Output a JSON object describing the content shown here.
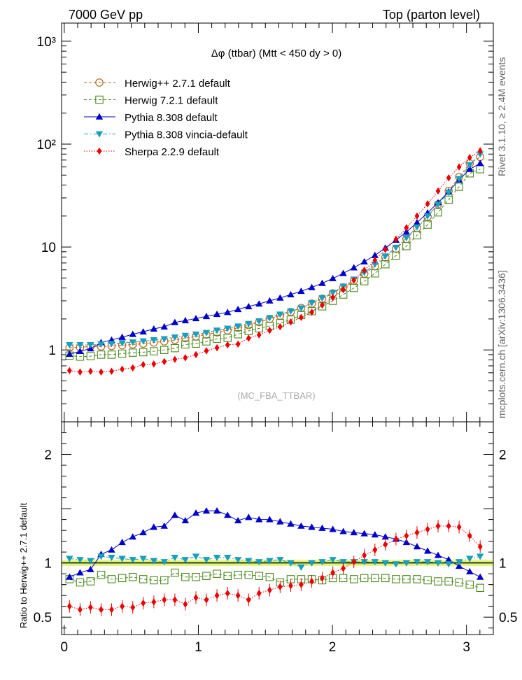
{
  "header": {
    "left": "7000 GeV pp",
    "right": "Top (parton level)"
  },
  "side_labels": {
    "rivet": "Rivet 3.1.10, ≥ 2.4M events",
    "mcplots": "mcplots.cern.ch [arXiv:1306.3436]"
  },
  "chart_data": [
    {
      "type": "scatter",
      "panel": "main",
      "title": "Δφ (ttbar) (Mtt < 450 dy > 0)",
      "watermark": "(MC_FBA_TTBAR)",
      "xlim": [
        -0.02,
        3.2
      ],
      "ylim": [
        0.2,
        1500
      ],
      "yscale": "log",
      "y_ticks": [
        {
          "value": 1,
          "label": "1"
        },
        {
          "value": 10,
          "label": "10"
        },
        {
          "value": 100,
          "label": "10²"
        },
        {
          "value": 1000,
          "label": "10³"
        }
      ],
      "legend_position": "top-left",
      "x": [
        0.039,
        0.118,
        0.196,
        0.275,
        0.353,
        0.432,
        0.511,
        0.589,
        0.668,
        0.746,
        0.825,
        0.903,
        0.982,
        1.06,
        1.139,
        1.218,
        1.296,
        1.375,
        1.453,
        1.532,
        1.61,
        1.689,
        1.767,
        1.846,
        1.924,
        2.003,
        2.081,
        2.16,
        2.238,
        2.317,
        2.395,
        2.474,
        2.552,
        2.631,
        2.71,
        2.788,
        2.867,
        2.945,
        3.024,
        3.102
      ],
      "series": [
        {
          "name": "Herwig++ 2.7.1 default",
          "color": "#b5651d",
          "marker": "circle-open",
          "line": "dashed",
          "values": [
            1.05,
            1.06,
            1.08,
            1.08,
            1.09,
            1.11,
            1.13,
            1.15,
            1.18,
            1.21,
            1.25,
            1.3,
            1.35,
            1.41,
            1.48,
            1.55,
            1.64,
            1.74,
            1.86,
            2.0,
            2.15,
            2.34,
            2.56,
            2.82,
            3.15,
            3.55,
            4.05,
            4.7,
            5.5,
            6.5,
            7.9,
            9.6,
            12.0,
            15.3,
            19.7,
            26.0,
            35.0,
            48.0,
            65.0,
            75.0
          ]
        },
        {
          "name": "Herwig 7.2.1 default",
          "color": "#4a8a1e",
          "marker": "square-open",
          "line": "dashed",
          "values": [
            0.88,
            0.86,
            0.87,
            0.9,
            0.9,
            0.92,
            0.94,
            0.95,
            0.97,
            1.0,
            1.04,
            1.13,
            1.15,
            1.21,
            1.28,
            1.31,
            1.42,
            1.53,
            1.62,
            1.71,
            1.82,
            1.97,
            2.18,
            2.38,
            2.65,
            3.0,
            3.45,
            4.0,
            4.65,
            5.55,
            6.8,
            8.25,
            10.2,
            13.0,
            16.5,
            21.7,
            28.8,
            38.5,
            52.0,
            57.0
          ]
        },
        {
          "name": "Pythia 8.308 default",
          "color": "#0000cc",
          "marker": "triangle-up",
          "line": "solid",
          "values": [
            0.91,
            0.97,
            1.03,
            1.18,
            1.25,
            1.33,
            1.42,
            1.5,
            1.6,
            1.68,
            1.85,
            1.93,
            2.02,
            2.12,
            2.22,
            2.32,
            2.48,
            2.64,
            2.8,
            3.0,
            3.2,
            3.45,
            3.72,
            4.05,
            4.45,
            4.95,
            5.55,
            6.3,
            7.2,
            8.3,
            9.8,
            11.7,
            14.0,
            17.3,
            21.5,
            27.0,
            34.5,
            45.0,
            57.0,
            65.0
          ]
        },
        {
          "name": "Pythia 8.308 vincia-default",
          "color": "#1a9fbe",
          "marker": "triangle-down",
          "line": "dashdot",
          "values": [
            1.12,
            1.12,
            1.12,
            1.14,
            1.15,
            1.17,
            1.19,
            1.22,
            1.25,
            1.28,
            1.33,
            1.38,
            1.42,
            1.47,
            1.55,
            1.62,
            1.7,
            1.8,
            1.91,
            2.05,
            2.22,
            2.38,
            2.55,
            2.86,
            3.2,
            3.6,
            4.15,
            4.85,
            5.65,
            6.8,
            8.15,
            9.9,
            12.3,
            15.6,
            20.0,
            26.0,
            34.0,
            46.0,
            63.0,
            80.0
          ]
        },
        {
          "name": "Sherpa 2.2.9 default",
          "color": "#ee0000",
          "marker": "diamond",
          "line": "dotted",
          "values": [
            0.63,
            0.61,
            0.62,
            0.61,
            0.62,
            0.65,
            0.67,
            0.72,
            0.73,
            0.77,
            0.81,
            0.84,
            0.9,
            0.98,
            1.05,
            1.12,
            1.14,
            1.3,
            1.4,
            1.55,
            1.68,
            1.87,
            2.07,
            2.33,
            2.73,
            3.22,
            3.85,
            4.75,
            5.95,
            7.45,
            9.45,
            11.9,
            15.4,
            20.0,
            26.3,
            35.0,
            47.0,
            60.0,
            74.0,
            86.0
          ]
        }
      ]
    },
    {
      "type": "scatter",
      "panel": "ratio",
      "ylabel": "Ratio to Herwig++ 2.7.1 default",
      "xlim": [
        -0.02,
        3.2
      ],
      "ylim": [
        0.34,
        2.3
      ],
      "x_ticks": [
        {
          "value": 0,
          "label": "0"
        },
        {
          "value": 1,
          "label": "1"
        },
        {
          "value": 2,
          "label": "2"
        },
        {
          "value": 3,
          "label": "3"
        }
      ],
      "y_ticks": [
        {
          "value": 0.5,
          "label": "0.5"
        },
        {
          "value": 1,
          "label": "1"
        },
        {
          "value": 2,
          "label": "2"
        }
      ],
      "reference_band": [
        0.97,
        1.03
      ],
      "series": [
        {
          "name": "Herwig 7.2.1 default",
          "values": [
            0.85,
            0.82,
            0.83,
            0.89,
            0.85,
            0.86,
            0.87,
            0.85,
            0.84,
            0.84,
            0.91,
            0.87,
            0.87,
            0.88,
            0.9,
            0.88,
            0.89,
            0.89,
            0.88,
            0.87,
            0.82,
            0.85,
            0.85,
            0.85,
            0.84,
            0.86,
            0.86,
            0.85,
            0.86,
            0.86,
            0.86,
            0.85,
            0.85,
            0.85,
            0.84,
            0.83,
            0.83,
            0.82,
            0.8,
            0.77
          ]
        },
        {
          "name": "Pythia 8.308 default",
          "values": [
            0.87,
            0.91,
            0.94,
            1.08,
            1.12,
            1.19,
            1.24,
            1.28,
            1.33,
            1.34,
            1.44,
            1.39,
            1.46,
            1.48,
            1.48,
            1.44,
            1.39,
            1.42,
            1.4,
            1.4,
            1.38,
            1.36,
            1.34,
            1.33,
            1.32,
            1.31,
            1.29,
            1.28,
            1.27,
            1.26,
            1.24,
            1.22,
            1.19,
            1.15,
            1.11,
            1.07,
            1.03,
            0.97,
            0.92,
            0.87
          ]
        },
        {
          "name": "Pythia 8.308 vincia-default",
          "values": [
            1.04,
            1.03,
            1.02,
            1.06,
            1.05,
            1.04,
            1.03,
            1.04,
            1.02,
            1.01,
            1.05,
            1.03,
            1.06,
            1.03,
            1.05,
            1.05,
            1.03,
            1.02,
            1.01,
            1.02,
            1.03,
            1.0,
            0.96,
            1.0,
            1.01,
            1.03,
            1.01,
            1.01,
            1.01,
            1.01,
            1.0,
            0.99,
            1.0,
            1.01,
            1.01,
            1.0,
            0.99,
            1.01,
            1.04,
            1.06
          ]
        },
        {
          "name": "Sherpa 2.2.9 default",
          "values": [
            0.6,
            0.57,
            0.59,
            0.57,
            0.57,
            0.6,
            0.59,
            0.63,
            0.64,
            0.66,
            0.66,
            0.62,
            0.68,
            0.66,
            0.7,
            0.72,
            0.7,
            0.66,
            0.72,
            0.75,
            0.78,
            0.79,
            0.8,
            0.83,
            0.86,
            0.91,
            0.95,
            1.01,
            1.07,
            1.12,
            1.17,
            1.22,
            1.25,
            1.28,
            1.31,
            1.34,
            1.34,
            1.33,
            1.25,
            1.15
          ]
        }
      ]
    }
  ]
}
